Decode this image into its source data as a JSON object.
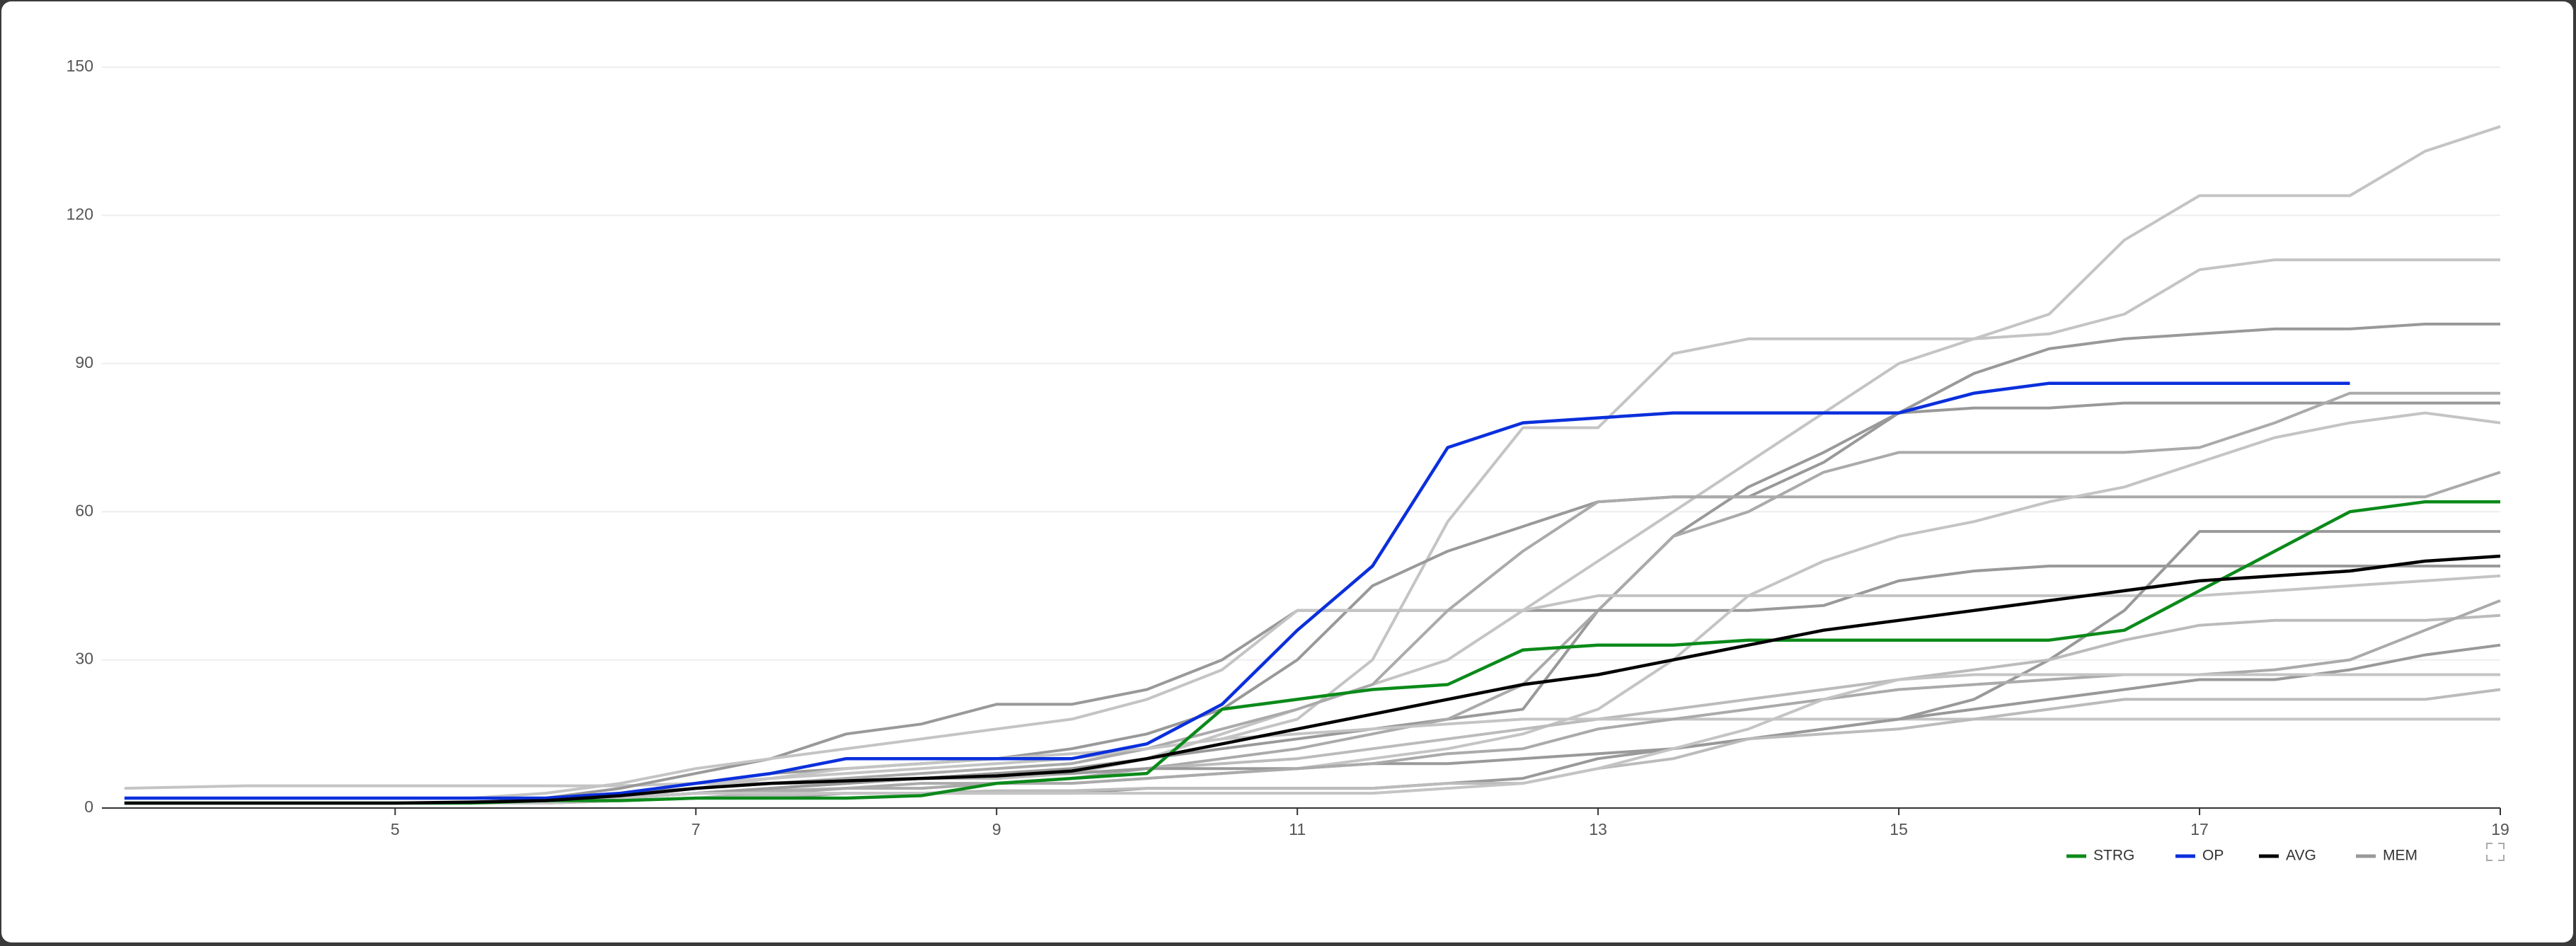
{
  "chart_data": {
    "type": "line",
    "x": [
      3.2,
      4,
      5,
      5.5,
      6,
      6.5,
      7,
      7.5,
      8,
      8.5,
      9,
      9.5,
      10,
      10.5,
      11,
      11.5,
      12,
      12.5,
      13,
      13.5,
      14,
      14.5,
      15,
      15.5,
      16,
      16.5,
      17,
      17.5,
      18,
      18.5,
      19
    ],
    "xlim": [
      3.05,
      19
    ],
    "xticks": [
      5,
      7,
      9,
      11,
      13,
      15,
      17,
      19
    ],
    "ylim": [
      0,
      150
    ],
    "yticks": [
      0,
      30,
      60,
      90,
      120,
      150
    ],
    "grid": true,
    "legend": "bottom-right",
    "series": [
      {
        "name": "STRG",
        "color": "#0b8a1a",
        "values": [
          1,
          1,
          1,
          1,
          1.5,
          1.5,
          2,
          2,
          2,
          2.5,
          5,
          6,
          7,
          20,
          22,
          24,
          25,
          32,
          33,
          33,
          34,
          34,
          34,
          34,
          34,
          36,
          44,
          52,
          60,
          62,
          62
        ]
      },
      {
        "name": "OP",
        "color": "#0a2fdc",
        "values": [
          2,
          2,
          2,
          2,
          2,
          3,
          5,
          7,
          10,
          10,
          10,
          10,
          13,
          21,
          36,
          49,
          73,
          78,
          79,
          80,
          80,
          80,
          80,
          84,
          86,
          86,
          86,
          86,
          86,
          null,
          null
        ]
      },
      {
        "name": "AVG",
        "color": "#000000",
        "values": [
          1,
          1,
          1,
          1.2,
          1.5,
          2.5,
          4,
          5,
          5.5,
          6,
          6.5,
          7.5,
          10,
          13,
          16,
          19,
          22,
          25,
          27,
          30,
          33,
          36,
          38,
          40,
          42,
          44,
          46,
          47,
          48,
          50,
          51
        ]
      },
      {
        "name": "MEM",
        "color": "#999999",
        "line_colors": [
          "#c4c4c4",
          "#c4c4c4",
          "#999999",
          "#999999",
          "#aaaaaa",
          "#999999",
          "#c4c4c4",
          "#aaaaaa",
          "#c4c4c4",
          "#999999",
          "#bbbbbb",
          "#c4c4c4",
          "#999999",
          "#aaaaaa",
          "#bbbbbb",
          "#c4c4c4"
        ],
        "lines": [
          [
            4,
            4.5,
            4.5,
            4.5,
            4.5,
            4.5,
            5,
            5,
            5,
            6,
            6,
            7,
            10,
            15,
            20,
            25,
            30,
            40,
            50,
            60,
            70,
            80,
            90,
            95,
            100,
            115,
            124,
            124,
            124,
            133,
            138
          ],
          [
            1,
            1,
            1,
            1,
            2,
            3,
            5,
            6,
            7,
            8,
            9,
            10,
            12,
            14,
            18,
            30,
            58,
            77,
            77,
            92,
            95,
            95,
            95,
            95,
            96,
            100,
            109,
            111,
            111,
            111,
            111
          ],
          [
            1,
            1,
            1,
            1,
            2,
            3,
            5,
            7,
            8,
            9,
            10,
            12,
            15,
            20,
            30,
            45,
            52,
            57,
            62,
            63,
            63,
            70,
            80,
            88,
            93,
            95,
            96,
            97,
            97,
            98,
            98
          ],
          [
            1,
            1,
            1,
            1,
            1.5,
            2,
            3,
            4,
            5,
            6,
            7,
            8,
            10,
            12,
            14,
            16,
            18,
            20,
            40,
            55,
            65,
            72,
            80,
            81,
            81,
            82,
            82,
            82,
            82,
            82,
            82
          ],
          [
            1,
            1,
            1,
            1,
            1.5,
            2,
            3,
            3.5,
            4,
            5,
            5,
            6,
            8,
            10,
            12,
            15,
            18,
            25,
            40,
            55,
            60,
            68,
            72,
            72,
            72,
            72,
            73,
            78,
            84,
            84,
            84
          ],
          [
            1,
            1,
            1,
            1,
            2,
            4,
            7,
            10,
            15,
            17,
            21,
            21,
            24,
            30,
            40,
            40,
            40,
            40,
            40,
            40,
            40,
            41,
            46,
            48,
            49,
            49,
            49,
            49,
            49,
            49,
            49
          ],
          [
            2,
            2,
            2,
            2,
            3,
            5,
            8,
            10,
            12,
            14,
            16,
            18,
            22,
            28,
            40,
            40,
            40,
            40,
            43,
            43,
            43,
            43,
            43,
            43,
            43,
            43,
            43,
            44,
            45,
            46,
            47
          ],
          [
            1,
            1,
            1,
            1,
            2,
            3,
            4,
            5,
            6,
            7,
            8,
            9,
            12,
            16,
            20,
            25,
            40,
            52,
            62,
            63,
            63,
            63,
            63,
            63,
            63,
            63,
            63,
            63,
            63,
            63,
            68
          ],
          [
            1,
            1,
            1,
            1,
            1.5,
            2,
            3,
            3,
            4,
            4,
            5,
            5,
            6,
            7,
            8,
            10,
            12,
            15,
            20,
            30,
            43,
            50,
            55,
            58,
            62,
            65,
            70,
            75,
            78,
            80,
            78
          ],
          [
            1,
            1,
            1,
            1,
            1,
            1.5,
            2,
            2,
            3,
            3,
            3,
            3,
            4,
            4,
            4,
            4,
            5,
            6,
            10,
            12,
            14,
            16,
            18,
            22,
            30,
            40,
            56,
            56,
            56,
            56,
            56
          ],
          [
            1,
            1,
            1,
            1,
            1,
            2,
            3,
            4,
            5,
            6,
            6,
            7,
            8,
            9,
            10,
            12,
            14,
            16,
            18,
            20,
            22,
            24,
            26,
            28,
            30,
            34,
            37,
            38,
            38,
            38,
            39
          ],
          [
            1,
            1,
            1,
            1,
            1.5,
            2,
            4,
            6,
            8,
            9,
            10,
            11,
            12,
            14,
            15,
            16,
            17,
            18,
            18,
            18,
            18,
            18,
            18,
            18,
            18,
            18,
            18,
            18,
            18,
            18,
            18
          ],
          [
            1,
            1,
            1,
            1,
            1,
            2,
            3,
            4,
            5,
            6,
            7,
            7,
            8,
            8,
            8,
            9,
            9,
            10,
            11,
            12,
            14,
            16,
            18,
            20,
            22,
            24,
            26,
            26,
            28,
            31,
            33
          ],
          [
            1,
            1,
            1,
            1,
            1,
            1.5,
            2,
            3,
            4,
            4,
            5,
            5,
            6,
            7,
            8,
            9,
            11,
            12,
            16,
            18,
            20,
            22,
            24,
            25,
            26,
            27,
            27,
            28,
            30,
            36,
            42
          ],
          [
            1,
            1,
            1,
            1,
            1,
            1.5,
            2,
            2.5,
            3,
            3,
            3.5,
            3.5,
            4,
            4,
            4,
            4,
            5,
            5,
            8,
            10,
            14,
            15,
            16,
            18,
            20,
            22,
            22,
            22,
            22,
            22,
            24
          ],
          [
            1,
            1,
            1,
            1,
            1,
            2,
            3,
            3,
            3,
            3,
            3,
            3,
            3,
            3,
            3,
            3,
            4,
            5,
            8,
            12,
            16,
            22,
            26,
            27,
            27,
            27,
            27,
            27,
            27,
            27,
            27
          ]
        ]
      }
    ]
  }
}
